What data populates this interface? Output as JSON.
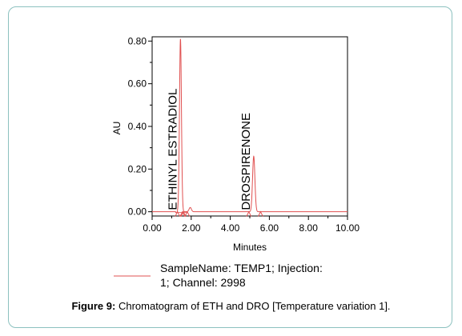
{
  "chart_data": {
    "type": "line",
    "title": "",
    "xlabel": "Minutes",
    "ylabel": "AU",
    "xlim": [
      0.0,
      10.0
    ],
    "ylim": [
      -0.02,
      0.82
    ],
    "x_ticks": [
      "0.00",
      "2.00",
      "4.00",
      "6.00",
      "8.00",
      "10.00"
    ],
    "y_ticks": [
      "0.00",
      "0.20",
      "0.40",
      "0.60",
      "0.80"
    ],
    "series": [
      {
        "color": "#e05050",
        "peaks": [
          {
            "label": "ETHINYL ESTRADIOL",
            "retention_time": 1.45,
            "height": 0.81,
            "width": 0.05
          },
          {
            "label": "",
            "retention_time": 1.95,
            "height": 0.02,
            "width": 0.06
          },
          {
            "label": "DROSPIRENONE",
            "retention_time": 5.2,
            "height": 0.26,
            "width": 0.06
          }
        ]
      }
    ],
    "legend": {
      "text_line1": "SampleName: TEMP1;    Injection:",
      "text_line2": "1;    Channel: 2998"
    }
  },
  "caption": {
    "prefix": "Figure 9:",
    "text": " Chromatogram of ETH and DRO [Temperature variation 1]."
  }
}
